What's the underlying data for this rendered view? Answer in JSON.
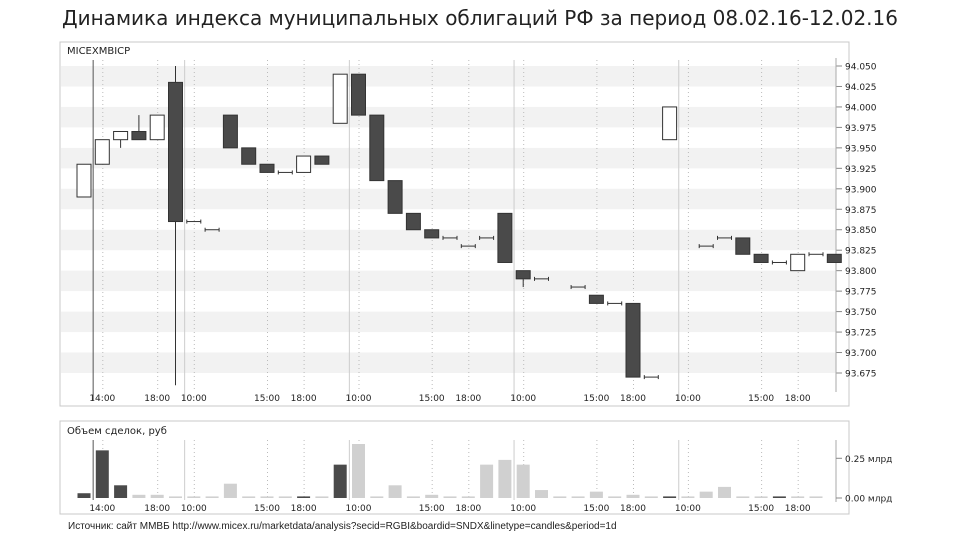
{
  "title": "Динамика индекса муниципальных облигаций РФ за период 08.02.16-12.02.16",
  "source": "Источник: сайт ММВБ http://www.micex.ru/marketdata/analysis?secid=RGBI&boardid=SNDX&linetype=candles&period=1d",
  "colors": {
    "down": "#4a4a4a",
    "up": "#ffffff",
    "volume_light": "#d0d0d0",
    "volume_dark": "#4a4a4a",
    "stripe": "#f2f2f2"
  },
  "chart_data": [
    {
      "type": "candlestick",
      "title": "MICEXMBICP",
      "ylim": [
        93.66,
        94.06
      ],
      "yticks": [
        "94.050",
        "94.025",
        "94.000",
        "93.975",
        "93.950",
        "93.925",
        "93.900",
        "93.875",
        "93.850",
        "93.825",
        "93.800",
        "93.775",
        "93.750",
        "93.725",
        "93.700",
        "93.675"
      ],
      "x_tick_labels": [
        {
          "slot": 1,
          "label": "14:00"
        },
        {
          "slot": 4,
          "label": "18:00"
        },
        {
          "slot": 6,
          "label": "10:00"
        },
        {
          "slot": 10,
          "label": "15:00"
        },
        {
          "slot": 12,
          "label": "18:00"
        },
        {
          "slot": 15,
          "label": "10:00"
        },
        {
          "slot": 19,
          "label": "15:00"
        },
        {
          "slot": 21,
          "label": "18:00"
        },
        {
          "slot": 24,
          "label": "10:00"
        },
        {
          "slot": 28,
          "label": "15:00"
        },
        {
          "slot": 30,
          "label": "18:00"
        },
        {
          "slot": 33,
          "label": "10:00"
        },
        {
          "slot": 37,
          "label": "15:00"
        },
        {
          "slot": 39,
          "label": "18:00"
        }
      ],
      "day_separators": [
        0.5,
        5.5,
        14.5,
        23.5,
        32.5
      ],
      "candles": [
        {
          "slot": 0,
          "o": 93.89,
          "h": 93.93,
          "l": 93.89,
          "c": 93.93
        },
        {
          "slot": 1,
          "o": 93.93,
          "h": 93.96,
          "l": 93.93,
          "c": 93.96
        },
        {
          "slot": 2,
          "o": 93.96,
          "h": 93.97,
          "l": 93.95,
          "c": 93.97
        },
        {
          "slot": 3,
          "o": 93.97,
          "h": 93.99,
          "l": 93.96,
          "c": 93.96
        },
        {
          "slot": 4,
          "o": 93.96,
          "h": 93.99,
          "l": 93.96,
          "c": 93.99
        },
        {
          "slot": 5,
          "o": 94.03,
          "h": 94.05,
          "l": 93.66,
          "c": 93.86
        },
        {
          "slot": 6,
          "o": 93.86,
          "h": 93.86,
          "l": 93.86,
          "c": 93.86
        },
        {
          "slot": 7,
          "o": 93.85,
          "h": 93.85,
          "l": 93.85,
          "c": 93.85
        },
        {
          "slot": 8,
          "o": 93.99,
          "h": 93.99,
          "l": 93.95,
          "c": 93.95
        },
        {
          "slot": 9,
          "o": 93.95,
          "h": 93.95,
          "l": 93.93,
          "c": 93.93
        },
        {
          "slot": 10,
          "o": 93.93,
          "h": 93.93,
          "l": 93.92,
          "c": 93.92
        },
        {
          "slot": 11,
          "o": 93.92,
          "h": 93.92,
          "l": 93.92,
          "c": 93.92
        },
        {
          "slot": 12,
          "o": 93.92,
          "h": 93.94,
          "l": 93.92,
          "c": 93.94
        },
        {
          "slot": 13,
          "o": 93.94,
          "h": 93.94,
          "l": 93.93,
          "c": 93.93
        },
        {
          "slot": 14,
          "o": 93.98,
          "h": 94.04,
          "l": 93.98,
          "c": 94.04
        },
        {
          "slot": 15,
          "o": 94.04,
          "h": 94.04,
          "l": 93.99,
          "c": 93.99
        },
        {
          "slot": 16,
          "o": 93.99,
          "h": 93.99,
          "l": 93.91,
          "c": 93.91
        },
        {
          "slot": 17,
          "o": 93.91,
          "h": 93.91,
          "l": 93.87,
          "c": 93.87
        },
        {
          "slot": 18,
          "o": 93.87,
          "h": 93.87,
          "l": 93.85,
          "c": 93.85
        },
        {
          "slot": 19,
          "o": 93.85,
          "h": 93.85,
          "l": 93.84,
          "c": 93.84
        },
        {
          "slot": 20,
          "o": 93.84,
          "h": 93.84,
          "l": 93.84,
          "c": 93.84
        },
        {
          "slot": 21,
          "o": 93.83,
          "h": 93.83,
          "l": 93.83,
          "c": 93.83
        },
        {
          "slot": 22,
          "o": 93.84,
          "h": 93.84,
          "l": 93.84,
          "c": 93.84
        },
        {
          "slot": 23,
          "o": 93.87,
          "h": 93.87,
          "l": 93.81,
          "c": 93.81
        },
        {
          "slot": 24,
          "o": 93.8,
          "h": 93.8,
          "l": 93.78,
          "c": 93.79
        },
        {
          "slot": 25,
          "o": 93.79,
          "h": 93.79,
          "l": 93.79,
          "c": 93.79
        },
        {
          "slot": 27,
          "o": 93.78,
          "h": 93.78,
          "l": 93.78,
          "c": 93.78
        },
        {
          "slot": 28,
          "o": 93.77,
          "h": 93.77,
          "l": 93.76,
          "c": 93.76
        },
        {
          "slot": 29,
          "o": 93.76,
          "h": 93.76,
          "l": 93.76,
          "c": 93.76
        },
        {
          "slot": 30,
          "o": 93.76,
          "h": 93.76,
          "l": 93.67,
          "c": 93.67
        },
        {
          "slot": 31,
          "o": 93.67,
          "h": 93.67,
          "l": 93.67,
          "c": 93.67
        },
        {
          "slot": 32,
          "o": 93.96,
          "h": 94.0,
          "l": 93.96,
          "c": 94.0
        },
        {
          "slot": 34,
          "o": 93.83,
          "h": 93.83,
          "l": 93.83,
          "c": 93.83
        },
        {
          "slot": 35,
          "o": 93.84,
          "h": 93.84,
          "l": 93.84,
          "c": 93.84
        },
        {
          "slot": 36,
          "o": 93.84,
          "h": 93.84,
          "l": 93.82,
          "c": 93.82
        },
        {
          "slot": 37,
          "o": 93.82,
          "h": 93.82,
          "l": 93.81,
          "c": 93.81
        },
        {
          "slot": 38,
          "o": 93.81,
          "h": 93.81,
          "l": 93.81,
          "c": 93.81
        },
        {
          "slot": 39,
          "o": 93.8,
          "h": 93.82,
          "l": 93.8,
          "c": 93.82
        },
        {
          "slot": 40,
          "o": 93.82,
          "h": 93.82,
          "l": 93.82,
          "c": 93.82
        },
        {
          "slot": 41,
          "o": 93.82,
          "h": 93.82,
          "l": 93.81,
          "c": 93.81
        }
      ]
    },
    {
      "type": "bar",
      "title": "Объем сделок, руб",
      "yticks": [
        {
          "value": 0.25,
          "label": "0.25 млрд"
        },
        {
          "value": 0.0,
          "label": "0.00 млрд"
        }
      ],
      "ylim": [
        0,
        0.34
      ],
      "volumes": [
        {
          "slot": 0,
          "v": 0.03,
          "dark": true
        },
        {
          "slot": 1,
          "v": 0.3,
          "dark": true
        },
        {
          "slot": 2,
          "v": 0.08,
          "dark": true
        },
        {
          "slot": 3,
          "v": 0.02,
          "dark": false
        },
        {
          "slot": 4,
          "v": 0.02,
          "dark": false
        },
        {
          "slot": 5,
          "v": 0.01,
          "dark": false
        },
        {
          "slot": 6,
          "v": 0.01,
          "dark": false
        },
        {
          "slot": 7,
          "v": 0.01,
          "dark": false
        },
        {
          "slot": 8,
          "v": 0.09,
          "dark": false
        },
        {
          "slot": 9,
          "v": 0.01,
          "dark": false
        },
        {
          "slot": 10,
          "v": 0.01,
          "dark": false
        },
        {
          "slot": 11,
          "v": 0.01,
          "dark": false
        },
        {
          "slot": 12,
          "v": 0.01,
          "dark": true
        },
        {
          "slot": 13,
          "v": 0.01,
          "dark": false
        },
        {
          "slot": 14,
          "v": 0.21,
          "dark": true
        },
        {
          "slot": 15,
          "v": 0.34,
          "dark": false
        },
        {
          "slot": 16,
          "v": 0.01,
          "dark": false
        },
        {
          "slot": 17,
          "v": 0.08,
          "dark": false
        },
        {
          "slot": 18,
          "v": 0.01,
          "dark": false
        },
        {
          "slot": 19,
          "v": 0.02,
          "dark": false
        },
        {
          "slot": 20,
          "v": 0.01,
          "dark": false
        },
        {
          "slot": 21,
          "v": 0.01,
          "dark": false
        },
        {
          "slot": 22,
          "v": 0.21,
          "dark": false
        },
        {
          "slot": 23,
          "v": 0.24,
          "dark": false
        },
        {
          "slot": 24,
          "v": 0.21,
          "dark": false
        },
        {
          "slot": 25,
          "v": 0.05,
          "dark": false
        },
        {
          "slot": 26,
          "v": 0.01,
          "dark": false
        },
        {
          "slot": 27,
          "v": 0.01,
          "dark": false
        },
        {
          "slot": 28,
          "v": 0.04,
          "dark": false
        },
        {
          "slot": 29,
          "v": 0.01,
          "dark": false
        },
        {
          "slot": 30,
          "v": 0.02,
          "dark": false
        },
        {
          "slot": 31,
          "v": 0.01,
          "dark": false
        },
        {
          "slot": 32,
          "v": 0.01,
          "dark": true
        },
        {
          "slot": 33,
          "v": 0.01,
          "dark": false
        },
        {
          "slot": 34,
          "v": 0.04,
          "dark": false
        },
        {
          "slot": 35,
          "v": 0.07,
          "dark": false
        },
        {
          "slot": 36,
          "v": 0.01,
          "dark": false
        },
        {
          "slot": 37,
          "v": 0.01,
          "dark": false
        },
        {
          "slot": 38,
          "v": 0.01,
          "dark": true
        },
        {
          "slot": 39,
          "v": 0.01,
          "dark": false
        },
        {
          "slot": 40,
          "v": 0.01,
          "dark": false
        }
      ]
    }
  ]
}
